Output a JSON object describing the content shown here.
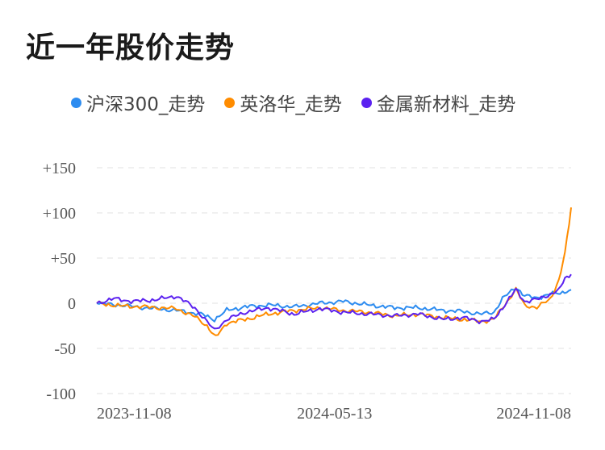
{
  "title": "近一年股价走势",
  "colors": {
    "grid": "#e6e6e6"
  },
  "chart_data": {
    "type": "line",
    "title": "近一年股价走势",
    "xlabel": "",
    "ylabel": "",
    "ylim": [
      -100,
      150
    ],
    "y_ticks": [
      150,
      100,
      50,
      0,
      -50,
      -100
    ],
    "y_tick_labels": [
      "+150",
      "+100",
      "+50",
      "0",
      "-50",
      "-100"
    ],
    "x_range": [
      "2023-11-01",
      "2024-11-22"
    ],
    "x_tick_labels": [
      "2023-11-08",
      "2024-05-13",
      "2024-11-08"
    ],
    "grid": "horizontal-dashed",
    "legend": "top",
    "series": [
      {
        "name": "沪深300_走势",
        "color": "#2d8cf0",
        "points": [
          [
            "2023-11-01",
            0
          ],
          [
            "2023-11-20",
            -2
          ],
          [
            "2023-12-10",
            -5
          ],
          [
            "2024-01-05",
            -8
          ],
          [
            "2024-01-25",
            -12
          ],
          [
            "2024-02-05",
            -18
          ],
          [
            "2024-02-15",
            -8
          ],
          [
            "2024-03-01",
            -4
          ],
          [
            "2024-03-20",
            -2
          ],
          [
            "2024-04-10",
            -4
          ],
          [
            "2024-05-01",
            0
          ],
          [
            "2024-05-20",
            2
          ],
          [
            "2024-06-10",
            -2
          ],
          [
            "2024-07-01",
            -5
          ],
          [
            "2024-07-20",
            -5
          ],
          [
            "2024-08-10",
            -8
          ],
          [
            "2024-08-25",
            -9
          ],
          [
            "2024-09-10",
            -12
          ],
          [
            "2024-09-20",
            -10
          ],
          [
            "2024-09-27",
            5
          ],
          [
            "2024-10-08",
            18
          ],
          [
            "2024-10-15",
            8
          ],
          [
            "2024-10-25",
            6
          ],
          [
            "2024-11-05",
            10
          ],
          [
            "2024-11-15",
            12
          ],
          [
            "2024-11-22",
            15
          ]
        ]
      },
      {
        "name": "英洛华_走势",
        "color": "#ff8c00",
        "points": [
          [
            "2023-11-01",
            0
          ],
          [
            "2023-11-20",
            -3
          ],
          [
            "2023-12-10",
            -4
          ],
          [
            "2024-01-05",
            -6
          ],
          [
            "2024-01-20",
            -15
          ],
          [
            "2024-01-30",
            -25
          ],
          [
            "2024-02-06",
            -38
          ],
          [
            "2024-02-15",
            -22
          ],
          [
            "2024-03-01",
            -18
          ],
          [
            "2024-03-20",
            -12
          ],
          [
            "2024-04-10",
            -8
          ],
          [
            "2024-05-01",
            -5
          ],
          [
            "2024-05-20",
            -8
          ],
          [
            "2024-06-10",
            -10
          ],
          [
            "2024-07-01",
            -14
          ],
          [
            "2024-07-20",
            -12
          ],
          [
            "2024-08-10",
            -16
          ],
          [
            "2024-08-25",
            -18
          ],
          [
            "2024-09-10",
            -20
          ],
          [
            "2024-09-20",
            -18
          ],
          [
            "2024-09-27",
            -5
          ],
          [
            "2024-10-08",
            15
          ],
          [
            "2024-10-15",
            -2
          ],
          [
            "2024-10-25",
            -5
          ],
          [
            "2024-11-05",
            5
          ],
          [
            "2024-11-12",
            25
          ],
          [
            "2024-11-17",
            55
          ],
          [
            "2024-11-22",
            106
          ]
        ]
      },
      {
        "name": "金属新材料_走势",
        "color": "#5b21f0",
        "points": [
          [
            "2023-11-01",
            0
          ],
          [
            "2023-11-15",
            5
          ],
          [
            "2023-12-01",
            2
          ],
          [
            "2023-12-20",
            4
          ],
          [
            "2024-01-05",
            8
          ],
          [
            "2024-01-20",
            -5
          ],
          [
            "2024-02-05",
            -30
          ],
          [
            "2024-02-15",
            -18
          ],
          [
            "2024-03-01",
            -10
          ],
          [
            "2024-03-20",
            -5
          ],
          [
            "2024-04-10",
            -12
          ],
          [
            "2024-05-01",
            -6
          ],
          [
            "2024-05-20",
            -10
          ],
          [
            "2024-06-10",
            -12
          ],
          [
            "2024-07-01",
            -14
          ],
          [
            "2024-07-20",
            -12
          ],
          [
            "2024-08-10",
            -18
          ],
          [
            "2024-08-25",
            -16
          ],
          [
            "2024-09-10",
            -20
          ],
          [
            "2024-09-20",
            -18
          ],
          [
            "2024-09-27",
            -5
          ],
          [
            "2024-10-08",
            15
          ],
          [
            "2024-10-15",
            2
          ],
          [
            "2024-10-25",
            4
          ],
          [
            "2024-11-05",
            10
          ],
          [
            "2024-11-12",
            14
          ],
          [
            "2024-11-17",
            28
          ],
          [
            "2024-11-22",
            32
          ]
        ]
      }
    ]
  }
}
